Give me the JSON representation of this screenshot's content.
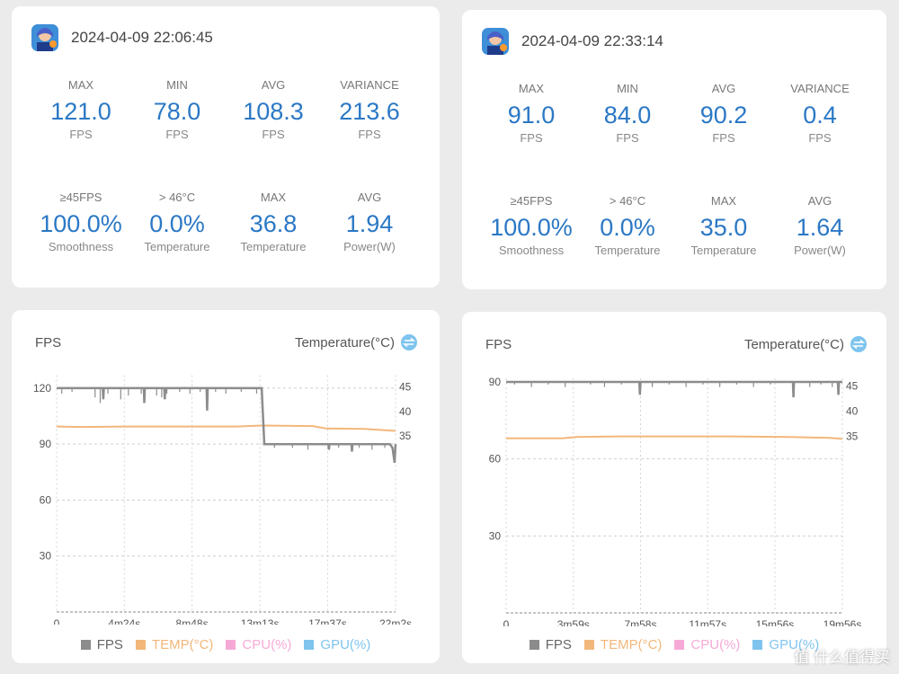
{
  "colors": {
    "accent": "#2b78c5",
    "fps": "#8c8c8c",
    "temp": "#f2b77a",
    "cpu": "#f6a9d6",
    "gpu": "#7ec4ee"
  },
  "sessions": [
    {
      "timestamp": "2024-04-09 22:06:45",
      "metrics": [
        {
          "label": "MAX",
          "value": "121.0",
          "unit": "FPS"
        },
        {
          "label": "MIN",
          "value": "78.0",
          "unit": "FPS"
        },
        {
          "label": "AVG",
          "value": "108.3",
          "unit": "FPS"
        },
        {
          "label": "VARIANCE",
          "value": "213.6",
          "unit": "FPS"
        },
        {
          "label": "≥45FPS",
          "value": "100.0%",
          "unit": "Smoothness"
        },
        {
          "label": "> 46°C",
          "value": "0.0%",
          "unit": "Temperature"
        },
        {
          "label": "MAX",
          "value": "36.8",
          "unit": "Temperature"
        },
        {
          "label": "AVG",
          "value": "1.94",
          "unit": "Power(W)"
        }
      ],
      "chart": {
        "left_title": "FPS",
        "right_title": "Temperature(°C)"
      }
    },
    {
      "timestamp": "2024-04-09 22:33:14",
      "metrics": [
        {
          "label": "MAX",
          "value": "91.0",
          "unit": "FPS"
        },
        {
          "label": "MIN",
          "value": "84.0",
          "unit": "FPS"
        },
        {
          "label": "AVG",
          "value": "90.2",
          "unit": "FPS"
        },
        {
          "label": "VARIANCE",
          "value": "0.4",
          "unit": "FPS"
        },
        {
          "label": "≥45FPS",
          "value": "100.0%",
          "unit": "Smoothness"
        },
        {
          "label": "> 46°C",
          "value": "0.0%",
          "unit": "Temperature"
        },
        {
          "label": "MAX",
          "value": "35.0",
          "unit": "Temperature"
        },
        {
          "label": "AVG",
          "value": "1.64",
          "unit": "Power(W)"
        }
      ],
      "chart": {
        "left_title": "FPS",
        "right_title": "Temperature(°C)"
      }
    }
  ],
  "legend": [
    {
      "label": "FPS",
      "color": "#8c8c8c"
    },
    {
      "label": "TEMP(°C)",
      "color": "#f2b77a"
    },
    {
      "label": "CPU(%)",
      "color": "#f6a9d6"
    },
    {
      "label": "GPU(%)",
      "color": "#7ec4ee"
    }
  ],
  "chart_data": [
    {
      "type": "line",
      "title": "FPS",
      "y2label": "Temperature(°C)",
      "ylim": [
        0,
        125
      ],
      "yticks": [
        30,
        60,
        90,
        120
      ],
      "y2ticks": [
        35,
        40,
        45
      ],
      "xmax": 1322,
      "xticks": [
        {
          "v": 0,
          "label": "0"
        },
        {
          "v": 264,
          "label": "4m24s"
        },
        {
          "v": 528,
          "label": "8m48s"
        },
        {
          "v": 793,
          "label": "13m13s"
        },
        {
          "v": 1057,
          "label": "17m37s"
        },
        {
          "v": 1322,
          "label": "22m2s"
        }
      ],
      "series": [
        {
          "name": "FPS",
          "color": "#8c8c8c",
          "points": [
            [
              0,
              120
            ],
            [
              180,
              120
            ],
            [
              182,
              114
            ],
            [
              184,
              120
            ],
            [
              340,
              120
            ],
            [
              342,
              112
            ],
            [
              344,
              120
            ],
            [
              420,
              120
            ],
            [
              422,
              114
            ],
            [
              424,
              120
            ],
            [
              585,
              120
            ],
            [
              587,
              108
            ],
            [
              589,
              120
            ],
            [
              800,
              120
            ],
            [
              810,
              90
            ],
            [
              1060,
              90
            ],
            [
              1062,
              87
            ],
            [
              1064,
              90
            ],
            [
              1150,
              90
            ],
            [
              1152,
              86
            ],
            [
              1154,
              90
            ],
            [
              1300,
              90
            ],
            [
              1310,
              88
            ],
            [
              1318,
              80
            ],
            [
              1322,
              90
            ]
          ],
          "spikes": [
            [
              20,
              117
            ],
            [
              60,
              118
            ],
            [
              150,
              115
            ],
            [
              170,
              112
            ],
            [
              200,
              117
            ],
            [
              250,
              114
            ],
            [
              280,
              116
            ],
            [
              330,
              117
            ],
            [
              390,
              116
            ],
            [
              410,
              115
            ],
            [
              430,
              117
            ],
            [
              480,
              118
            ],
            [
              520,
              117
            ],
            [
              560,
              118
            ],
            [
              620,
              118
            ],
            [
              660,
              117
            ],
            [
              720,
              118
            ],
            [
              780,
              117
            ],
            [
              850,
              88
            ],
            [
              920,
              88
            ],
            [
              980,
              87
            ],
            [
              1100,
              88
            ],
            [
              1180,
              88
            ],
            [
              1230,
              87
            ],
            [
              1280,
              88
            ]
          ]
        },
        {
          "name": "TEMP(°C)",
          "color": "#f2b77a",
          "axis": "right",
          "y2lim": [
            -1.2,
            46.7
          ],
          "points": [
            [
              0,
              36.9
            ],
            [
              100,
              36.8
            ],
            [
              300,
              36.9
            ],
            [
              500,
              36.9
            ],
            [
              700,
              36.9
            ],
            [
              800,
              37.1
            ],
            [
              1000,
              37.0
            ],
            [
              1050,
              36.5
            ],
            [
              1200,
              36.4
            ],
            [
              1322,
              36.0
            ]
          ]
        }
      ]
    },
    {
      "type": "line",
      "title": "FPS",
      "y2label": "Temperature(°C)",
      "ylim": [
        0,
        90
      ],
      "yticks": [
        30,
        60,
        90
      ],
      "y2ticks": [
        35,
        40,
        45
      ],
      "xmax": 1196,
      "xticks": [
        {
          "v": 0,
          "label": "0"
        },
        {
          "v": 239,
          "label": "3m59s"
        },
        {
          "v": 478,
          "label": "7m58s"
        },
        {
          "v": 717,
          "label": "11m57s"
        },
        {
          "v": 956,
          "label": "15m56s"
        },
        {
          "v": 1196,
          "label": "19m56s"
        }
      ],
      "series": [
        {
          "name": "FPS",
          "color": "#8c8c8c",
          "points": [
            [
              0,
              90
            ],
            [
              474,
              90
            ],
            [
              476,
              85
            ],
            [
              478,
              90
            ],
            [
              1020,
              90
            ],
            [
              1022,
              84
            ],
            [
              1024,
              90
            ],
            [
              1180,
              90
            ],
            [
              1182,
              85
            ],
            [
              1184,
              90
            ],
            [
              1196,
              90
            ]
          ],
          "spikes": [
            [
              30,
              89
            ],
            [
              90,
              88
            ],
            [
              150,
              89
            ],
            [
              210,
              88
            ],
            [
              300,
              89
            ],
            [
              350,
              88
            ],
            [
              410,
              89
            ],
            [
              520,
              88
            ],
            [
              580,
              89
            ],
            [
              640,
              88
            ],
            [
              700,
              89
            ],
            [
              760,
              88
            ],
            [
              820,
              89
            ],
            [
              880,
              88
            ],
            [
              940,
              89
            ],
            [
              1080,
              88
            ],
            [
              1120,
              89
            ],
            [
              1160,
              88
            ]
          ]
        },
        {
          "name": "TEMP(°C)",
          "color": "#f2b77a",
          "axis": "right",
          "y2lim": [
            0,
            45.8
          ],
          "points": [
            [
              0,
              34.6
            ],
            [
              200,
              34.6
            ],
            [
              250,
              34.9
            ],
            [
              400,
              35.0
            ],
            [
              600,
              35.0
            ],
            [
              800,
              35.0
            ],
            [
              1000,
              34.9
            ],
            [
              1150,
              34.7
            ],
            [
              1196,
              34.5
            ]
          ]
        }
      ]
    }
  ],
  "watermark": "值 什么值得买"
}
